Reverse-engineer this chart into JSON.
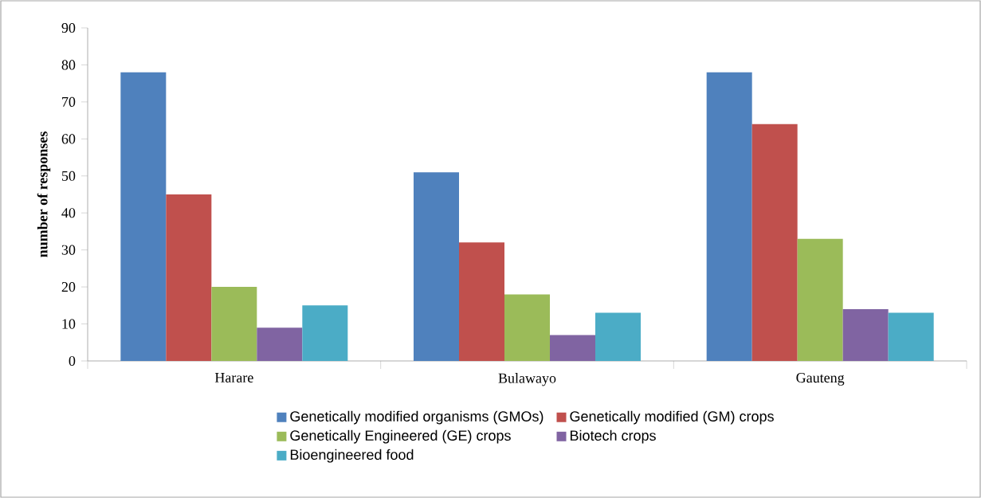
{
  "chart_data": {
    "type": "bar",
    "ylabel": "number of responses",
    "categories": [
      "Harare",
      "Bulawayo",
      "Gauteng"
    ],
    "series": [
      {
        "name": "Genetically modified organisms (GMOs)",
        "color": "#4f81bd",
        "values": [
          78,
          51,
          78
        ]
      },
      {
        "name": "Genetically modified (GM) crops",
        "color": "#c0504d",
        "values": [
          45,
          32,
          64
        ]
      },
      {
        "name": "Genetically Engineered (GE)  crops",
        "color": "#9bbb59",
        "values": [
          20,
          18,
          33
        ]
      },
      {
        "name": "Biotech crops",
        "color": "#8064a2",
        "values": [
          9,
          7,
          14
        ]
      },
      {
        "name": "Bioengineered food",
        "color": "#4bacc6",
        "values": [
          15,
          13,
          13
        ]
      }
    ],
    "ylim": [
      0,
      90
    ],
    "yticks": [
      0,
      10,
      20,
      30,
      40,
      50,
      60,
      70,
      80,
      90
    ],
    "grid": false,
    "legend": "bottom"
  }
}
